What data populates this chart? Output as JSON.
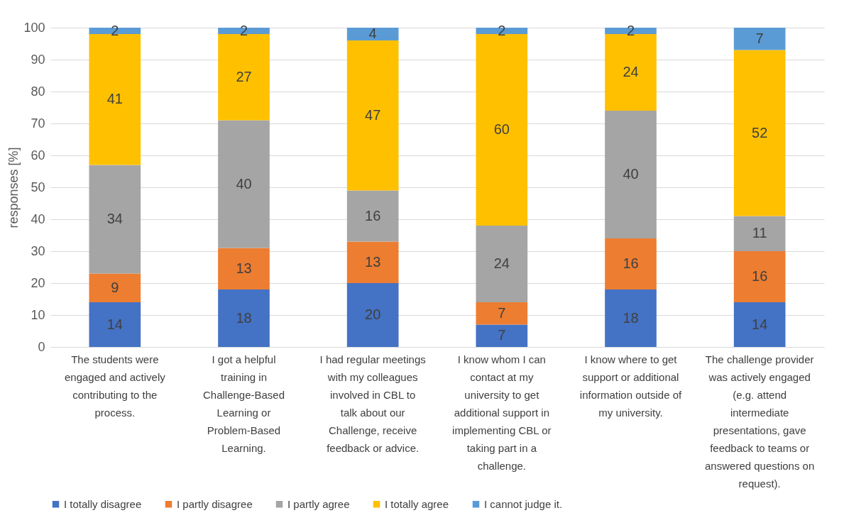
{
  "chart_data": {
    "type": "bar",
    "stacked": true,
    "ylabel": "responses [%]",
    "categories": [
      "The students were engaged and actively contributing to the process.",
      "I got a helpful training in Challenge-Based Learning or Problem-Based Learning.",
      "I had regular meetings with my colleagues involved in CBL to talk about our Challenge, receive feedback or advice.",
      "I know whom I can contact at my university to get additional support in implementing CBL or taking part in a challenge.",
      "I know where to get support or additional information outside of my university.",
      "The challenge provider was actively engaged (e.g. attend intermediate presentations, gave feedback to teams or answered questions on request)."
    ],
    "series": [
      {
        "name": "I totally disagree",
        "color": "#4472c4",
        "values": [
          14,
          18,
          20,
          7,
          18,
          14
        ]
      },
      {
        "name": "I partly disagree",
        "color": "#ed7d31",
        "values": [
          9,
          13,
          13,
          7,
          16,
          16
        ]
      },
      {
        "name": "I partly agree",
        "color": "#a5a5a5",
        "values": [
          34,
          40,
          16,
          24,
          40,
          11
        ]
      },
      {
        "name": "I totally agree",
        "color": "#ffc000",
        "values": [
          41,
          27,
          47,
          60,
          24,
          52
        ]
      },
      {
        "name": "I cannot judge it.",
        "color": "#5b9bd5",
        "values": [
          2,
          2,
          4,
          2,
          2,
          7
        ]
      }
    ],
    "ylim": [
      0,
      100
    ],
    "yticks": [
      0,
      10,
      20,
      30,
      40,
      50,
      60,
      70,
      80,
      90,
      100
    ],
    "grid": "y",
    "legend": "bottom",
    "data_labels": true
  }
}
